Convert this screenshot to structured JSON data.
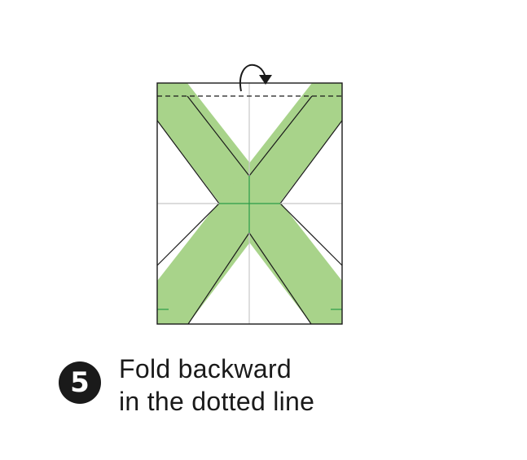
{
  "step": {
    "number": "5",
    "instruction_line1": "Fold backward",
    "instruction_line2": "in the dotted line"
  },
  "colors": {
    "paper": "#ffffff",
    "green_side": "#a8d38a",
    "green_crease": "#2a9d47",
    "outline": "#1a1a1a",
    "crease": "#c8c8c8"
  },
  "fold": {
    "direction": "backward",
    "line_style": "dotted",
    "icon": "curved-arrow-icon"
  }
}
